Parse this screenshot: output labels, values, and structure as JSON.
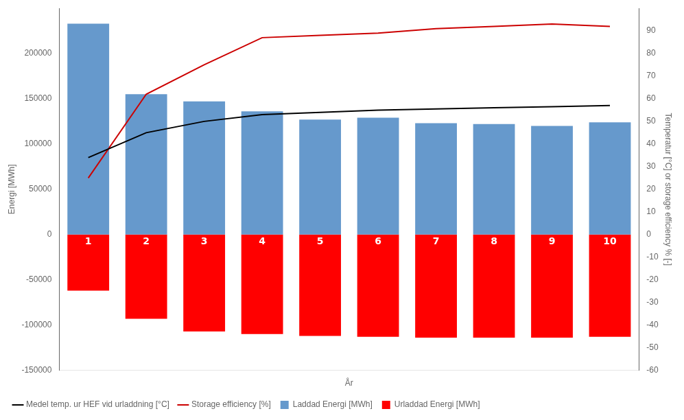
{
  "chart_data": {
    "type": "bar",
    "categories": [
      1,
      2,
      3,
      4,
      5,
      6,
      7,
      8,
      9,
      10
    ],
    "xlabel": "År",
    "ylabel": "Energi [MWh]",
    "y2label": "Temperatur [°C] or storage efficiency % [-]",
    "series": [
      {
        "name": "Laddad Energi [MWh]",
        "type": "bar",
        "color": "#6699CC",
        "values": [
          233000,
          155000,
          147000,
          136000,
          127000,
          129000,
          123000,
          122000,
          120000,
          124000
        ]
      },
      {
        "name": "Urladdad Energi [MWh]",
        "type": "bar",
        "color": "#FF0000",
        "values": [
          -62000,
          -93000,
          -107000,
          -110000,
          -112000,
          -113000,
          -114000,
          -114000,
          -114000,
          -113000
        ]
      },
      {
        "name": "Medel temp. ur HEF vid urladdning [°C]",
        "type": "line",
        "color": "#000000",
        "axis": "y2",
        "values": [
          34,
          45,
          50,
          53,
          54,
          55,
          55.5,
          56,
          56.5,
          57
        ]
      },
      {
        "name": "Storage efficiency [%]",
        "type": "line",
        "color": "#CC0000",
        "axis": "y2",
        "values": [
          25,
          62,
          75,
          87,
          88,
          89,
          91,
          92,
          93,
          92
        ]
      }
    ],
    "ylim": [
      -150000,
      250000
    ],
    "yticks": [
      -150000,
      -100000,
      -50000,
      0,
      50000,
      100000,
      150000,
      200000
    ],
    "y2lim": [
      -60,
      100
    ],
    "y2ticks": [
      -60,
      -50,
      -40,
      -30,
      -20,
      -10,
      0,
      10,
      20,
      30,
      40,
      50,
      60,
      70,
      80,
      90
    ],
    "grid": false,
    "legend": "lower left",
    "tick_labels": "y"
  }
}
